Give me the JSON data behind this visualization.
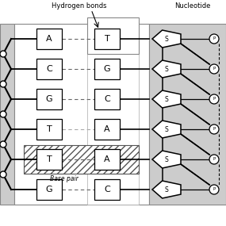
{
  "left_bases": [
    "A",
    "C",
    "G",
    "T",
    "T",
    "G"
  ],
  "right_bases": [
    "T",
    "G",
    "C",
    "A",
    "A",
    "C"
  ],
  "base_pair_index": 5,
  "title_hydrogen": "Hydrogen bonds",
  "title_nucleotide": "Nucleotide",
  "label_base_pair": "Base pair",
  "label_s": "S",
  "label_p": "P",
  "n_rows": 6,
  "fig_w": 2.85,
  "fig_h": 2.85,
  "dpi": 100
}
